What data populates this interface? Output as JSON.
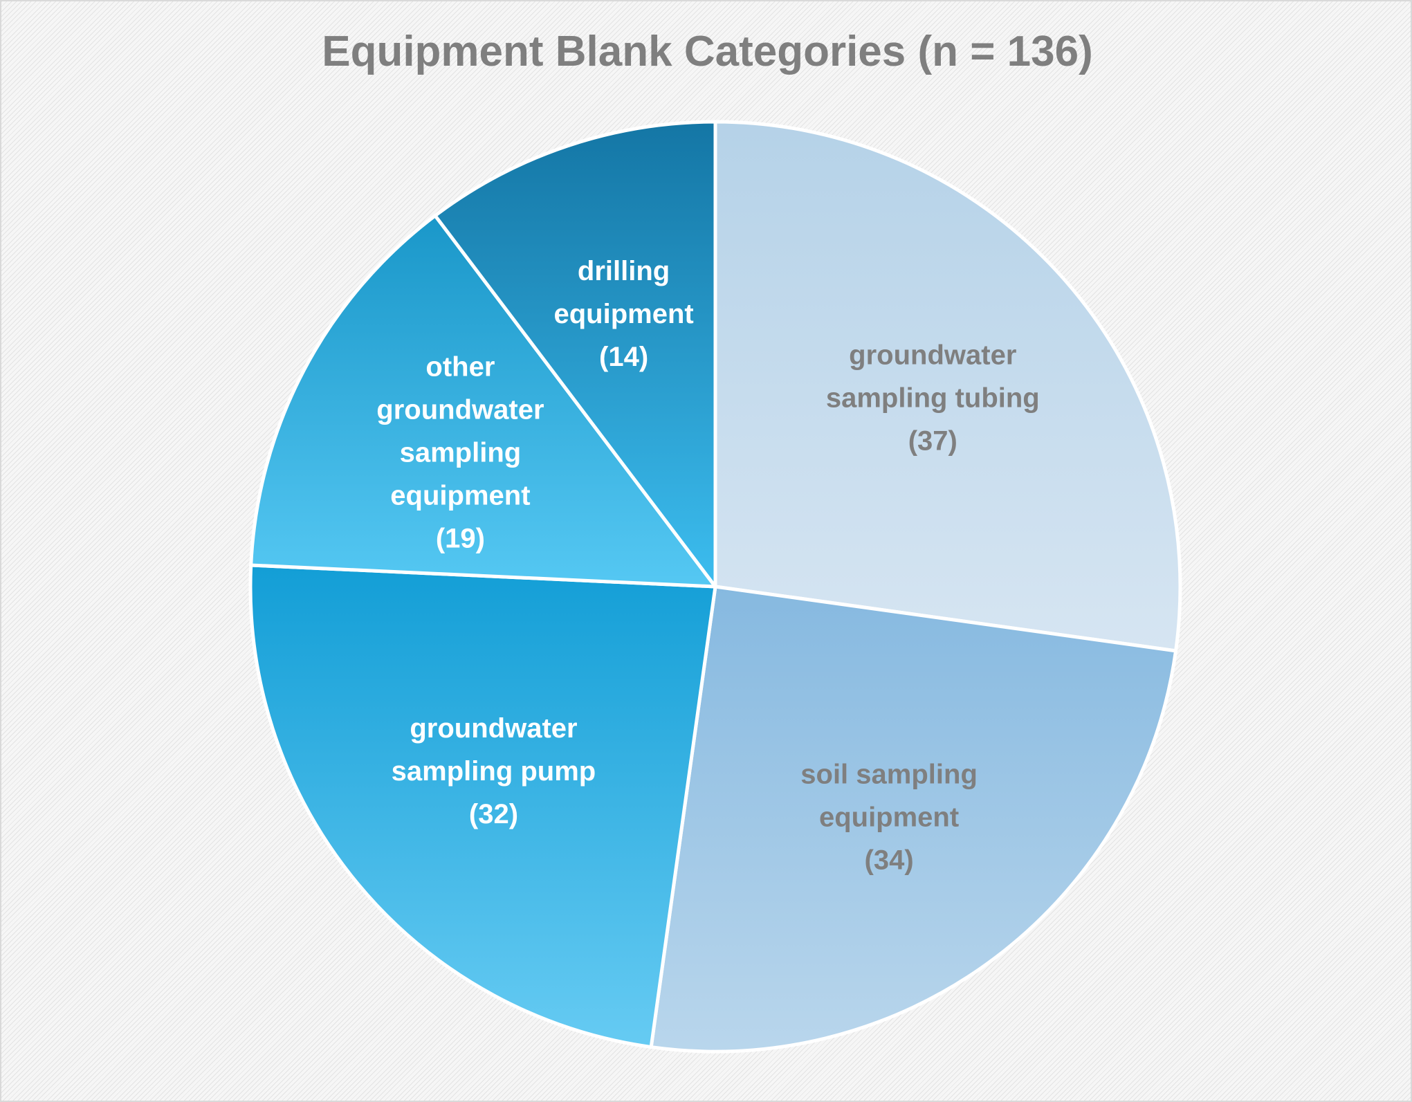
{
  "chart_data": {
    "type": "pie",
    "title": "Equipment Blank Categories (n = 136)",
    "start_angle_deg": 0,
    "direction": "clockwise",
    "slices": [
      {
        "label_lines": [
          "groundwater",
          "sampling tubing",
          "(37)"
        ],
        "value": 37,
        "color_light": "#d6e5f2",
        "color_dark": "#b5d2e8",
        "text_color": "#7f7f7f"
      },
      {
        "label_lines": [
          "soil sampling",
          "equipment",
          "(34)"
        ],
        "value": 34,
        "color_light": "#b9d6ec",
        "color_dark": "#86b9e0",
        "text_color": "#7f7f7f"
      },
      {
        "label_lines": [
          "groundwater",
          "sampling pump",
          "(32)"
        ],
        "value": 32,
        "color_light": "#66cbf3",
        "color_dark": "#139ed6",
        "text_color": "#ffffff"
      },
      {
        "label_lines": [
          "other",
          "groundwater",
          "sampling",
          "equipment",
          "(19)"
        ],
        "value": 19,
        "color_light": "#55c8f3",
        "color_dark": "#1a97c9",
        "text_color": "#ffffff"
      },
      {
        "label_lines": [
          "drilling",
          "equipment",
          "(14)"
        ],
        "value": 14,
        "color_light": "#3cbdef",
        "color_dark": "#1476a5",
        "text_color": "#ffffff"
      }
    ]
  }
}
